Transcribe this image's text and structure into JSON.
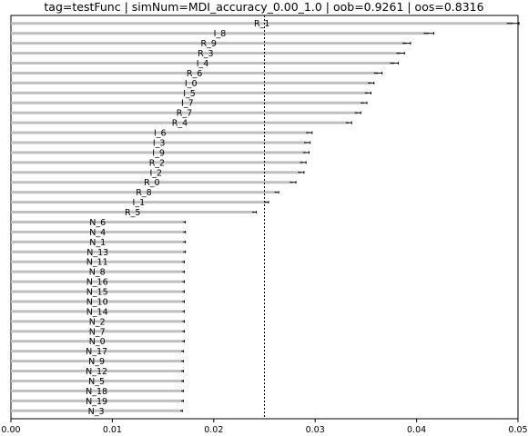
{
  "chart_data": {
    "type": "bar",
    "orientation": "horizontal",
    "title": "tag=testFunc | simNum=MDI_accuracy_0.00_1.0 | oob=0.9261 | oos=0.8316",
    "xlabel": "",
    "ylabel": "",
    "xlim": [
      0,
      0.05
    ],
    "x_ticks": [
      "0.00",
      "0.01",
      "0.02",
      "0.03",
      "0.04",
      "0.05"
    ],
    "x_tick_values": [
      0,
      0.01,
      0.02,
      0.03,
      0.04,
      0.05
    ],
    "reference_line": 0.025,
    "reference_line_style": "dotted",
    "grid": false,
    "legend": "none",
    "bar_color": "#bfbfbf",
    "error_color": "#000000",
    "categories": [
      "R_1",
      "I_8",
      "R_9",
      "R_3",
      "I_4",
      "R_6",
      "I_0",
      "I_5",
      "I_7",
      "R_7",
      "R_4",
      "I_6",
      "I_3",
      "I_9",
      "R_2",
      "I_2",
      "R_0",
      "R_8",
      "I_1",
      "R_5",
      "N_6",
      "N_4",
      "N_1",
      "N_13",
      "N_11",
      "N_8",
      "N_16",
      "N_15",
      "N_10",
      "N_14",
      "N_2",
      "N_7",
      "N_0",
      "N_17",
      "N_9",
      "N_12",
      "N_5",
      "N_18",
      "N_19",
      "N_3"
    ],
    "values": [
      0.0495,
      0.0412,
      0.039,
      0.0384,
      0.0378,
      0.0362,
      0.0355,
      0.0352,
      0.0348,
      0.0342,
      0.0333,
      0.0294,
      0.0292,
      0.0291,
      0.0288,
      0.0286,
      0.0278,
      0.0262,
      0.0252,
      0.024,
      0.0171,
      0.0171,
      0.0171,
      0.0171,
      0.017,
      0.017,
      0.017,
      0.017,
      0.017,
      0.017,
      0.017,
      0.017,
      0.017,
      0.0169,
      0.0169,
      0.0169,
      0.0169,
      0.0169,
      0.0169,
      0.0168
    ],
    "errors": [
      0.0006,
      0.0005,
      0.0004,
      0.0004,
      0.0004,
      0.0004,
      0.0003,
      0.0003,
      0.0003,
      0.0003,
      0.0003,
      0.0003,
      0.0003,
      0.0003,
      0.0003,
      0.0003,
      0.0003,
      0.0002,
      0.0002,
      0.0002,
      0.0001,
      0.0001,
      0.0001,
      0.0001,
      0.0001,
      0.0001,
      0.0001,
      0.0001,
      0.0001,
      0.0001,
      0.0001,
      0.0001,
      0.0001,
      0.0001,
      0.0001,
      0.0001,
      0.0001,
      0.0001,
      0.0001,
      0.0001
    ]
  }
}
